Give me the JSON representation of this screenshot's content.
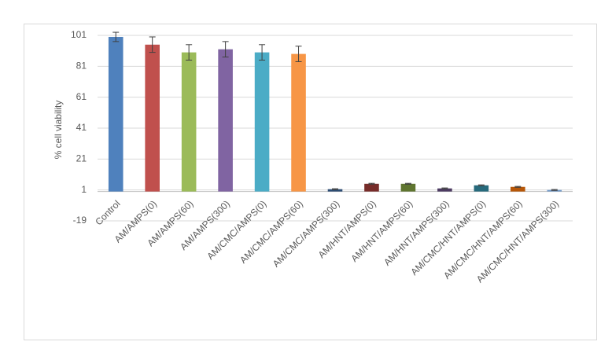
{
  "chart_data": {
    "type": "bar",
    "y_label": "% cell viability",
    "categories": [
      "Control",
      "AM/AMPS(0)",
      "AM/AMPS(60)",
      "AM/AMPS(300)",
      "AM/CMC/AMPS(0)",
      "AM/CMC/AMPS(60)",
      "AM/CMC/AMPS(300)",
      "AM/HNT/AMPS(0)",
      "AM/HNT/AMPS(60)",
      "AM/HNT/AMPS(300)",
      "AM/CMC/HNT/AMPS(0)",
      "AM/CMC/HNT/AMPS(60)",
      "AM/CMC/HNT/AMPS(300)"
    ],
    "values": [
      100,
      95,
      90,
      92,
      90,
      89,
      1.5,
      5,
      5,
      2,
      4,
      3,
      1
    ],
    "errors": [
      3,
      5,
      5,
      5,
      5,
      5,
      0.3,
      0.3,
      0.3,
      0.3,
      0.3,
      0.3,
      0.3
    ],
    "colors": [
      "#4f81bd",
      "#c0504d",
      "#9bbb59",
      "#8064a2",
      "#4bacc6",
      "#f79646",
      "#2c4d75",
      "#772c2a",
      "#5f7530",
      "#4d3b62",
      "#276a7c",
      "#b65708",
      "#729aca"
    ],
    "ylim": [
      -19,
      101
    ],
    "yticks": [
      -19,
      1,
      21,
      41,
      61,
      81,
      101
    ],
    "grid": true
  }
}
